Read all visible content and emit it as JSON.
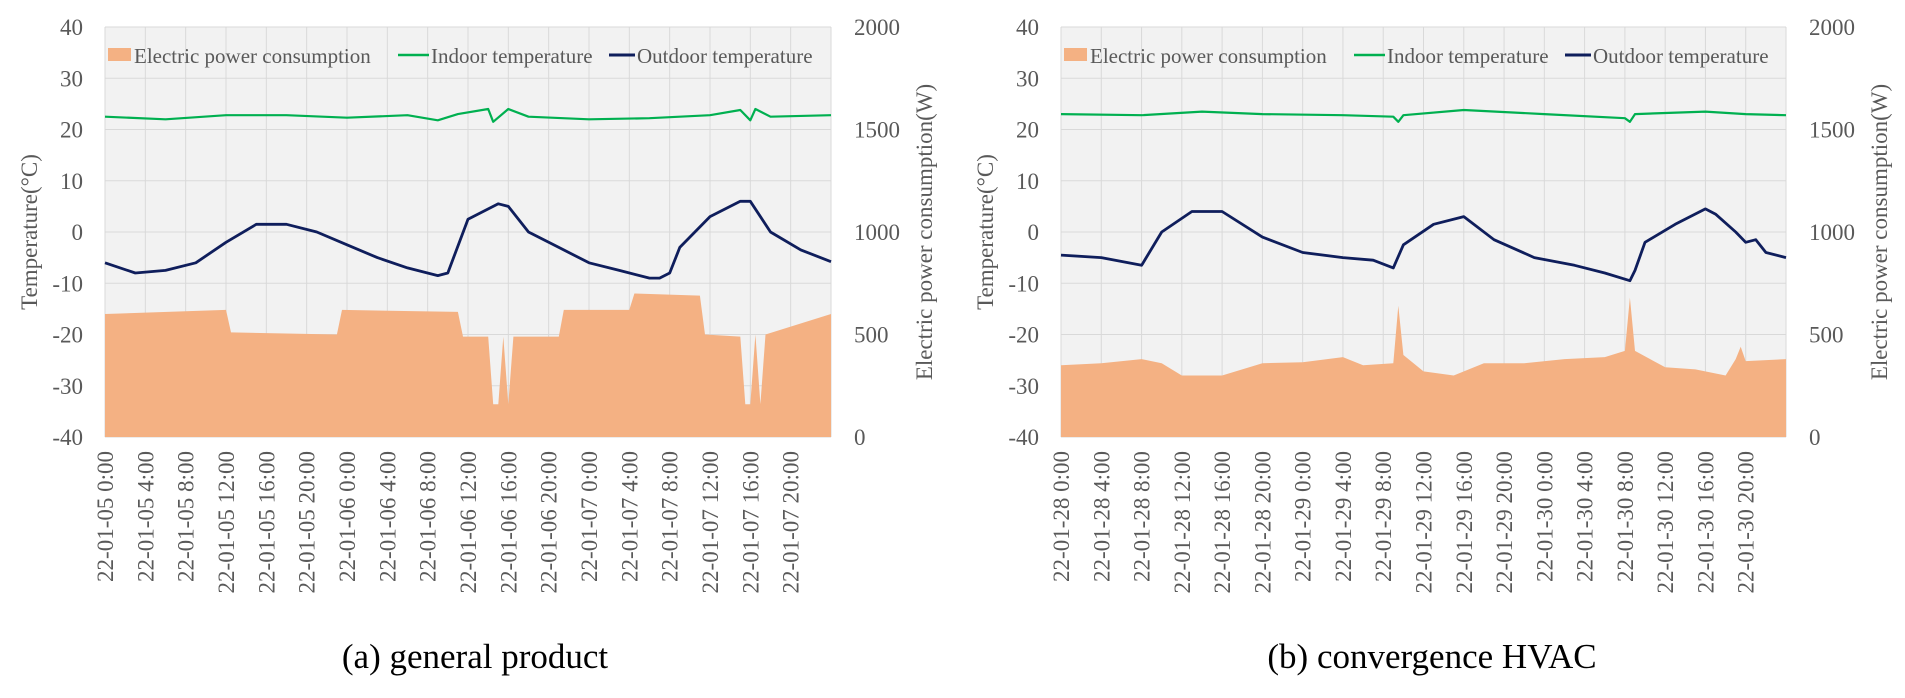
{
  "chart_data": [
    {
      "type": "area",
      "caption": "(a) general product",
      "y_left_label": "Temperature(°C)",
      "y_right_label": "Electric power consumption(W)",
      "y_left_range": [
        -40,
        40
      ],
      "y_left_ticks": [
        "40",
        "30",
        "20",
        "10",
        "0",
        "-10",
        "-20",
        "-30",
        "-40"
      ],
      "y_right_range": [
        0,
        2000
      ],
      "y_right_ticks": [
        "2000",
        "1500",
        "1000",
        "500",
        "0"
      ],
      "x_tick_labels": [
        "22-01-05 0:00",
        "22-01-05 4:00",
        "22-01-05 8:00",
        "22-01-05 12:00",
        "22-01-05 16:00",
        "22-01-05 20:00",
        "22-01-06 0:00",
        "22-01-06 4:00",
        "22-01-06 8:00",
        "22-01-06 12:00",
        "22-01-06 16:00",
        "22-01-06 20:00",
        "22-01-07 0:00",
        "22-01-07 4:00",
        "22-01-07 8:00",
        "22-01-07 12:00",
        "22-01-07 16:00",
        "22-01-07 20:00"
      ],
      "x_range_hours": [
        0,
        72
      ],
      "legend": [
        "Electric power consumption",
        "Indoor temperature",
        "Outdoor temperature"
      ],
      "series": [
        {
          "name": "Electric power consumption",
          "axis": "right",
          "x_hours": [
            0,
            12,
            12.5,
            23,
            23.5,
            35,
            35.5,
            38,
            38.5,
            39,
            39.5,
            40,
            40.5,
            45,
            45.5,
            52,
            52.5,
            59,
            59.5,
            63,
            63.5,
            64,
            64.5,
            65,
            65.5,
            72
          ],
          "values": [
            600,
            620,
            510,
            500,
            620,
            610,
            490,
            490,
            160,
            160,
            490,
            160,
            490,
            490,
            620,
            620,
            700,
            690,
            500,
            490,
            160,
            160,
            500,
            160,
            500,
            600
          ]
        },
        {
          "name": "Indoor temperature",
          "axis": "left",
          "x_hours": [
            0,
            6,
            12,
            18,
            24,
            30,
            33,
            35,
            38,
            38.5,
            40,
            42,
            48,
            54,
            60,
            63,
            64,
            64.5,
            66,
            72
          ],
          "values": [
            22.5,
            22,
            22.8,
            22.8,
            22.3,
            22.8,
            21.8,
            23,
            24,
            21.5,
            24,
            22.5,
            22,
            22.2,
            22.8,
            23.8,
            21.8,
            24,
            22.5,
            22.8
          ]
        },
        {
          "name": "Outdoor temperature",
          "axis": "left",
          "x_hours": [
            0,
            3,
            6,
            9,
            12,
            15,
            18,
            21,
            24,
            27,
            30,
            33,
            34,
            36,
            39,
            40,
            42,
            45,
            48,
            51,
            54,
            55,
            56,
            57,
            60,
            63,
            64,
            66,
            69,
            72
          ],
          "values": [
            -6,
            -8,
            -7.5,
            -6,
            -2,
            1.5,
            1.5,
            0,
            -2.5,
            -5,
            -7,
            -8.5,
            -8,
            2.5,
            5.5,
            5,
            0,
            -3,
            -6,
            -7.5,
            -9,
            -9,
            -8,
            -3,
            3,
            6,
            6,
            0,
            -3.5,
            -5.8
          ]
        }
      ]
    },
    {
      "type": "area",
      "caption": "(b) convergence HVAC",
      "y_left_label": "Temperature(°C)",
      "y_right_label": "Electric power consumption(W)",
      "y_left_range": [
        -40,
        40
      ],
      "y_left_ticks": [
        "40",
        "30",
        "20",
        "10",
        "0",
        "-10",
        "-20",
        "-30",
        "-40"
      ],
      "y_right_range": [
        0,
        2000
      ],
      "y_right_ticks": [
        "2000",
        "1500",
        "1000",
        "500",
        "0"
      ],
      "x_tick_labels": [
        "22-01-28 0:00",
        "22-01-28 4:00",
        "22-01-28 8:00",
        "22-01-28 12:00",
        "22-01-28 16:00",
        "22-01-28 20:00",
        "22-01-29 0:00",
        "22-01-29 4:00",
        "22-01-29 8:00",
        "22-01-29 12:00",
        "22-01-29 16:00",
        "22-01-29 20:00",
        "22-01-30 0:00",
        "22-01-30 4:00",
        "22-01-30 8:00",
        "22-01-30 12:00",
        "22-01-30 16:00",
        "22-01-30 20:00"
      ],
      "x_range_hours": [
        0,
        72
      ],
      "legend": [
        "Electric power consumption",
        "Indoor temperature",
        "Outdoor temperature"
      ],
      "series": [
        {
          "name": "Electric power consumption",
          "axis": "right",
          "x_hours": [
            0,
            4,
            8,
            10,
            12,
            16,
            20,
            24,
            28,
            30,
            33,
            33.5,
            34,
            36,
            39,
            42,
            46,
            50,
            54,
            56,
            56.5,
            57,
            60,
            63,
            66,
            67,
            67.5,
            68,
            72
          ],
          "values": [
            350,
            360,
            380,
            360,
            300,
            300,
            360,
            365,
            390,
            350,
            360,
            640,
            400,
            320,
            300,
            360,
            360,
            380,
            390,
            420,
            680,
            420,
            340,
            330,
            300,
            380,
            440,
            370,
            380
          ]
        },
        {
          "name": "Indoor temperature",
          "axis": "left",
          "x_hours": [
            0,
            8,
            14,
            20,
            28,
            33,
            33.5,
            34,
            40,
            48,
            56,
            56.5,
            57,
            64,
            68,
            72
          ],
          "values": [
            23,
            22.8,
            23.5,
            23,
            22.8,
            22.5,
            21.5,
            22.8,
            23.8,
            23,
            22.2,
            21.5,
            23,
            23.5,
            23,
            22.8
          ]
        },
        {
          "name": "Outdoor temperature",
          "axis": "left",
          "x_hours": [
            0,
            4,
            8,
            10,
            13,
            16,
            20,
            24,
            28,
            31,
            33,
            34,
            37,
            40,
            43,
            47,
            51,
            54,
            56.5,
            57,
            58,
            61,
            64,
            65,
            67,
            68,
            69,
            70,
            72
          ],
          "values": [
            -4.5,
            -5,
            -6.5,
            0,
            4,
            4,
            -1,
            -4,
            -5,
            -5.5,
            -7,
            -2.5,
            1.5,
            3,
            -1.5,
            -5,
            -6.5,
            -8,
            -9.5,
            -7.5,
            -2,
            1.5,
            4.5,
            3.5,
            0,
            -2,
            -1.5,
            -4,
            -5
          ]
        }
      ]
    }
  ],
  "colors": {
    "power": "#F4B183",
    "indoor": "#00B050",
    "outdoor": "#0F1E5C",
    "plot_bg": "#F2F2F2",
    "grid": "#D9D9D9",
    "text": "#595959"
  }
}
